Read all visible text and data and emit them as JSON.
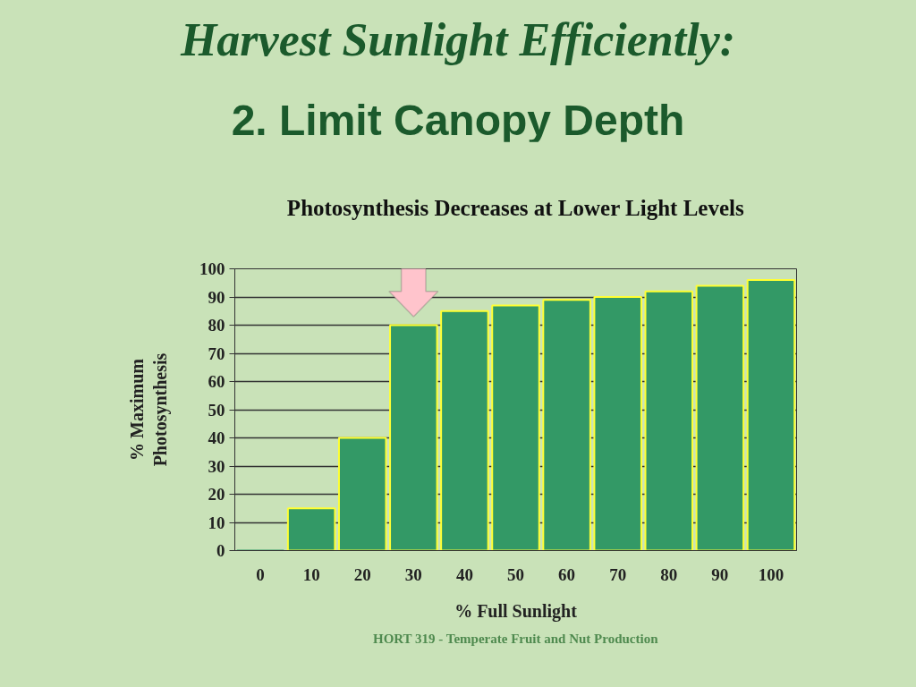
{
  "chart_data": {
    "type": "bar",
    "title": "Harvest Sunlight Efficiently:\n2. Limit Canopy Depth",
    "subtitle": "Photosynthesis Decreases at Lower Light Levels",
    "xlabel": "% Full Sunlight",
    "ylabel": "% Maximum\nPhotosynthesis",
    "categories": [
      "0",
      "10",
      "20",
      "30",
      "40",
      "50",
      "60",
      "70",
      "80",
      "90",
      "100"
    ],
    "values": [
      0,
      15,
      40,
      80,
      85,
      87,
      89,
      90,
      92,
      94,
      96
    ],
    "color": "#339966",
    "ylim": [
      0,
      100
    ],
    "yticks": [
      0,
      10,
      20,
      30,
      40,
      50,
      60,
      70,
      80,
      90,
      100
    ],
    "grid": "y",
    "annotations": [
      {
        "x": "30"
      },
      "HORT 319 - Temperate Fruit and Nut Production"
    ]
  }
}
